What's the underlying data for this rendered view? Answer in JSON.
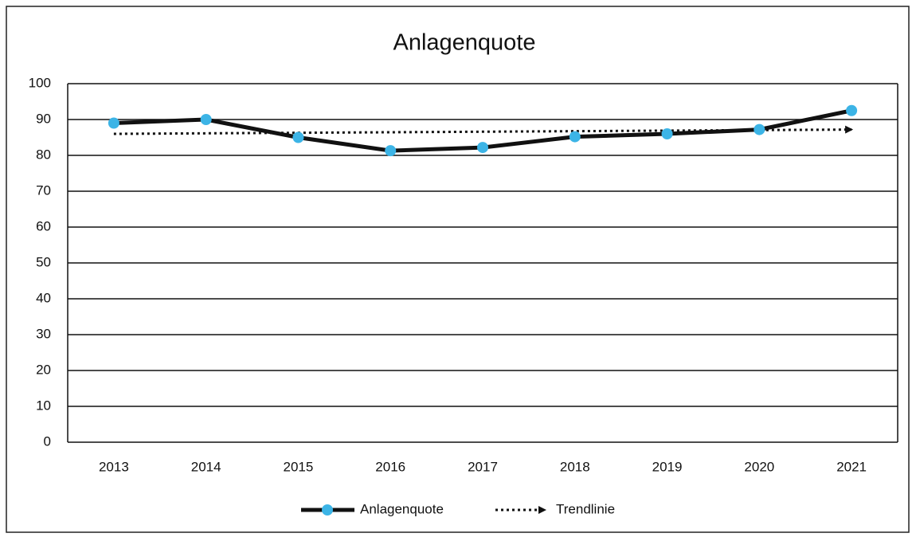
{
  "chart_data": {
    "type": "line",
    "title": "Anlagenquote",
    "categories": [
      "2013",
      "2014",
      "2015",
      "2016",
      "2017",
      "2018",
      "2019",
      "2020",
      "2021"
    ],
    "series": [
      {
        "name": "Anlagenquote",
        "color": "#111111",
        "marker_color": "#3cb4e6",
        "values": [
          89,
          90,
          85,
          81.3,
          82.2,
          85.2,
          86,
          87.2,
          92.5
        ]
      },
      {
        "name": "Trendlinie",
        "color": "#111111",
        "style": "dotted",
        "values": [
          86,
          86.15,
          86.3,
          86.45,
          86.6,
          86.75,
          86.9,
          87.05,
          87.2
        ]
      }
    ],
    "ylim": [
      0,
      100
    ],
    "yticks": [
      0,
      10,
      20,
      30,
      40,
      50,
      60,
      70,
      80,
      90,
      100
    ],
    "grid": true,
    "legend": "bottom"
  }
}
